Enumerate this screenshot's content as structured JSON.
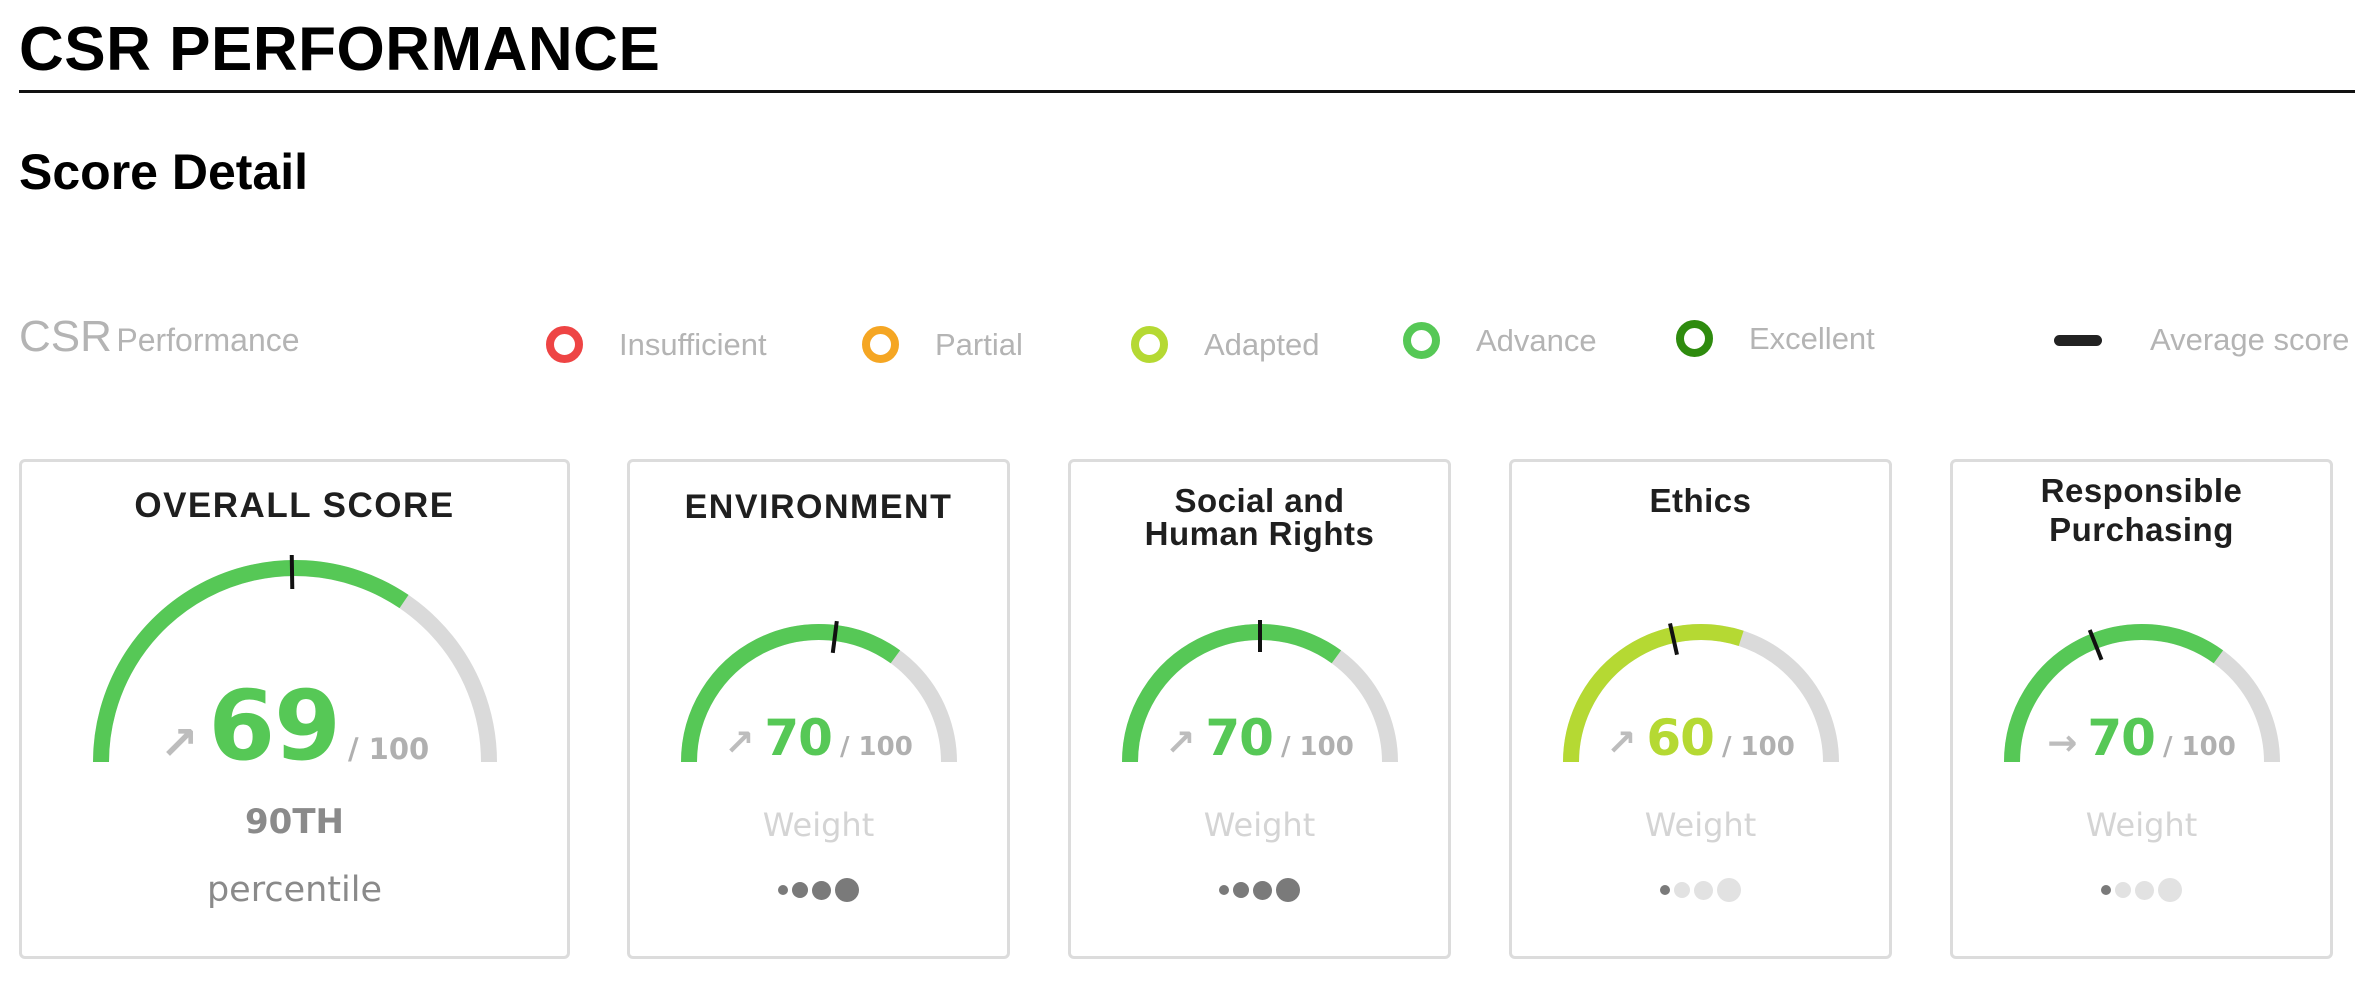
{
  "page": {
    "title": "CSR PERFORMANCE",
    "section_title": "Score Detail"
  },
  "legend": {
    "title_main": "CSR",
    "title_sub": "Performance",
    "items": [
      {
        "label": "Insufficient",
        "color": "#ee4444"
      },
      {
        "label": "Partial",
        "color": "#f5a623"
      },
      {
        "label": "Adapted",
        "color": "#b5d933"
      },
      {
        "label": "Advance",
        "color": "#56c856"
      },
      {
        "label": "Excellent",
        "color": "#2e8b0e"
      }
    ],
    "average_label": "Average score",
    "average_color": "#222222"
  },
  "colors": {
    "track": "#dadada",
    "weight_active": "#7a7a7a",
    "weight_inactive": "#e2e2e2",
    "average_marker": "#111111"
  },
  "cards": [
    {
      "title_lines": [
        "OVERALL SCORE"
      ],
      "score": "69",
      "score_fraction": 0.69,
      "average_fraction": 0.495,
      "max_label": "/ 100",
      "trend": "up-right",
      "trend_icon": "trend-up-icon",
      "trend_glyph": "↗",
      "color": "#56c856",
      "rank": "90TH",
      "rank_label": "percentile"
    },
    {
      "title_lines": [
        "ENVIRONMENT"
      ],
      "score": "70",
      "score_fraction": 0.7,
      "average_fraction": 0.54,
      "max_label": "/ 100",
      "trend": "up-right",
      "trend_icon": "trend-up-icon",
      "trend_glyph": "↗",
      "color": "#56c856",
      "weight_label": "Weight",
      "weight_level": 4,
      "weight_max": 4
    },
    {
      "title_lines": [
        "Social and",
        "Human Rights"
      ],
      "score": "70",
      "score_fraction": 0.7,
      "average_fraction": 0.5,
      "max_label": "/ 100",
      "trend": "up-right",
      "trend_icon": "trend-up-icon",
      "trend_glyph": "↗",
      "color": "#56c856",
      "weight_label": "Weight",
      "weight_level": 4,
      "weight_max": 4
    },
    {
      "title_lines": [
        "Ethics"
      ],
      "score": "60",
      "score_fraction": 0.6,
      "average_fraction": 0.43,
      "max_label": "/ 100",
      "trend": "up-right",
      "trend_icon": "trend-up-icon",
      "trend_glyph": "↗",
      "color": "#b5d933",
      "weight_label": "Weight",
      "weight_level": 1,
      "weight_max": 4
    },
    {
      "title_lines": [
        "Responsible",
        "Purchasing"
      ],
      "score": "70",
      "score_fraction": 0.7,
      "average_fraction": 0.38,
      "max_label": "/ 100",
      "trend": "right",
      "trend_icon": "trend-flat-icon",
      "trend_glyph": "→",
      "color": "#56c856",
      "weight_label": "Weight",
      "weight_level": 1,
      "weight_max": 4
    }
  ]
}
